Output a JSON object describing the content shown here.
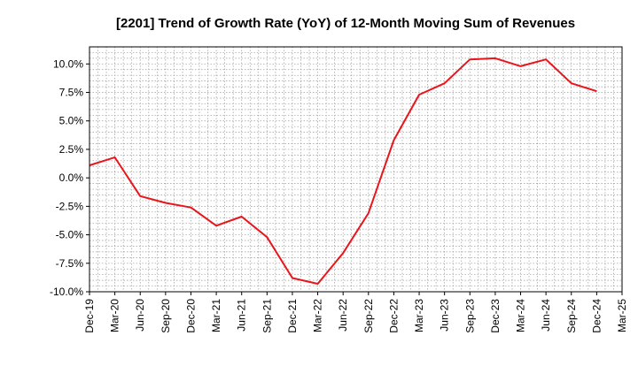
{
  "chart_data": {
    "type": "line",
    "title": "[2201]  Trend of Growth Rate (YoY) of 12-Month Moving Sum of Revenues",
    "xlabel": "",
    "ylabel": "",
    "ylim": [
      -10.0,
      11.5
    ],
    "yticks": [
      -10.0,
      -7.5,
      -5.0,
      -2.5,
      0.0,
      2.5,
      5.0,
      7.5,
      10.0
    ],
    "ytick_labels": [
      "-10.0%",
      "-7.5%",
      "-5.0%",
      "-2.5%",
      "0.0%",
      "2.5%",
      "5.0%",
      "7.5%",
      "10.0%"
    ],
    "x_tick_labels": [
      "Dec-19",
      "Mar-20",
      "Jun-20",
      "Sep-20",
      "Dec-20",
      "Mar-21",
      "Jun-21",
      "Sep-21",
      "Dec-21",
      "Mar-22",
      "Jun-22",
      "Sep-22",
      "Dec-22",
      "Mar-23",
      "Jun-23",
      "Sep-23",
      "Dec-23",
      "Mar-24",
      "Jun-24",
      "Sep-24",
      "Dec-24",
      "Mar-25"
    ],
    "grid": true,
    "line_color": "#e8151b",
    "series": [
      {
        "x": [
          "Dec-19",
          "Mar-20",
          "Jun-20",
          "Sep-20",
          "Dec-20",
          "Mar-21",
          "Jun-21",
          "Sep-21",
          "Dec-21",
          "Mar-22",
          "Jun-22",
          "Sep-22",
          "Dec-22",
          "Mar-23",
          "Jun-23",
          "Sep-23",
          "Dec-23",
          "Mar-24",
          "Jun-24",
          "Sep-24",
          "Dec-24"
        ],
        "values": [
          1.1,
          1.8,
          -1.6,
          -2.2,
          -2.6,
          -4.2,
          -3.4,
          -5.2,
          -8.8,
          -9.3,
          -6.6,
          -3.1,
          3.3,
          7.3,
          8.3,
          10.4,
          10.5,
          9.8,
          10.4,
          8.3,
          7.6
        ]
      }
    ]
  }
}
